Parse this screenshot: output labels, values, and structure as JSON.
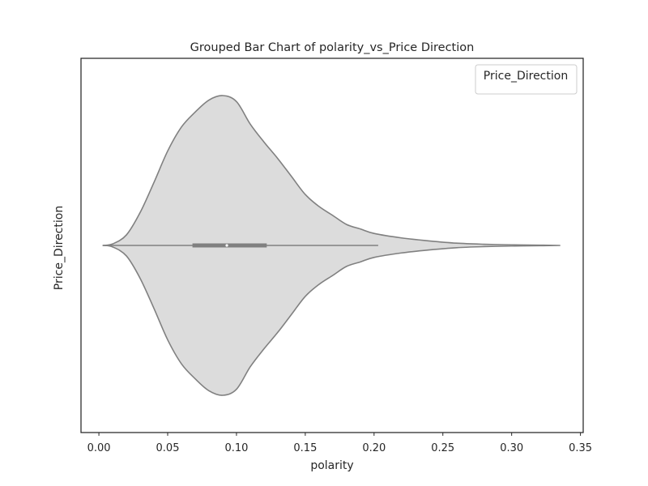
{
  "chart_data": {
    "type": "violin",
    "orientation": "horizontal",
    "title": "Grouped Bar Chart of polarity_vs_Price Direction",
    "xlabel": "polarity",
    "ylabel": "Price_Direction",
    "xlim": [
      -0.013,
      0.352
    ],
    "xticks": [
      0.0,
      0.05,
      0.1,
      0.15,
      0.2,
      0.25,
      0.3,
      0.35
    ],
    "xtick_labels": [
      "0.00",
      "0.05",
      "0.10",
      "0.15",
      "0.20",
      "0.25",
      "0.30",
      "0.35"
    ],
    "legend": {
      "title": "Price_Direction",
      "placement": "top-right",
      "entries": []
    },
    "grid": false,
    "colors": {
      "fill": "#dcdcdc",
      "outline": "#808080",
      "box": "#808080",
      "frame": "#262626"
    },
    "violin": {
      "density_profile": [
        [
          0.003,
          0.0
        ],
        [
          0.01,
          0.01
        ],
        [
          0.02,
          0.07
        ],
        [
          0.03,
          0.22
        ],
        [
          0.04,
          0.42
        ],
        [
          0.05,
          0.63
        ],
        [
          0.06,
          0.79
        ],
        [
          0.07,
          0.89
        ],
        [
          0.08,
          0.97
        ],
        [
          0.09,
          1.0
        ],
        [
          0.1,
          0.96
        ],
        [
          0.11,
          0.81
        ],
        [
          0.12,
          0.69
        ],
        [
          0.13,
          0.58
        ],
        [
          0.14,
          0.46
        ],
        [
          0.15,
          0.34
        ],
        [
          0.16,
          0.26
        ],
        [
          0.17,
          0.2
        ],
        [
          0.18,
          0.14
        ],
        [
          0.19,
          0.11
        ],
        [
          0.2,
          0.08
        ],
        [
          0.22,
          0.05
        ],
        [
          0.24,
          0.03
        ],
        [
          0.26,
          0.015
        ],
        [
          0.28,
          0.008
        ],
        [
          0.3,
          0.004
        ],
        [
          0.32,
          0.002
        ],
        [
          0.335,
          0.0
        ]
      ],
      "box": {
        "whisker_low": 0.003,
        "q1": 0.068,
        "median": 0.093,
        "q3": 0.122,
        "whisker_high": 0.203
      }
    }
  }
}
